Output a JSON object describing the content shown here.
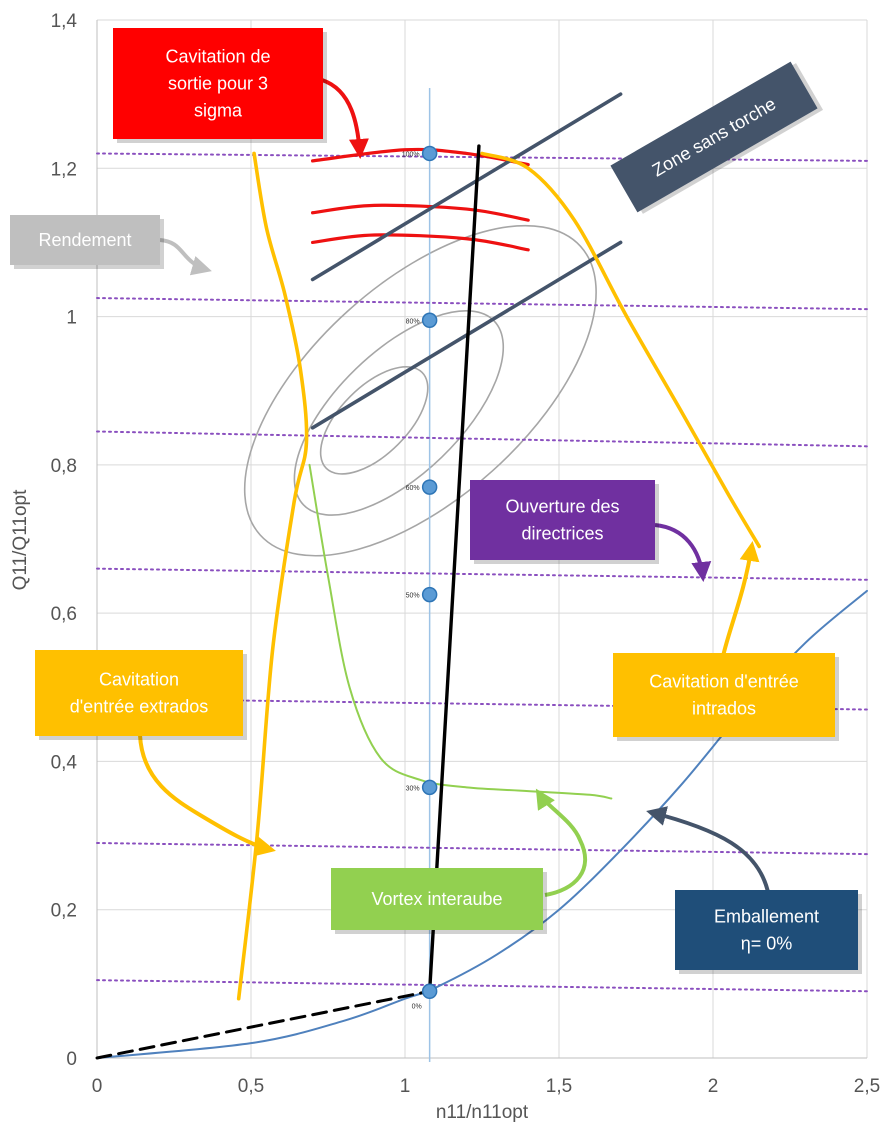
{
  "chart_data": {
    "type": "scatter",
    "xlabel": "n11/n11opt",
    "ylabel": "Q11/Q11opt",
    "xlim": [
      0,
      2.5
    ],
    "ylim": [
      0,
      1.4
    ],
    "grid": true,
    "x_ticks": [
      {
        "v": 0,
        "label": "0"
      },
      {
        "v": 0.5,
        "label": "0,5"
      },
      {
        "v": 1,
        "label": "1"
      },
      {
        "v": 1.5,
        "label": "1,5"
      },
      {
        "v": 2,
        "label": "2"
      },
      {
        "v": 2.5,
        "label": "2,5"
      }
    ],
    "y_ticks": [
      {
        "v": 0,
        "label": "0"
      },
      {
        "v": 0.2,
        "label": "0,2"
      },
      {
        "v": 0.4,
        "label": "0,4"
      },
      {
        "v": 0.6,
        "label": "0,6"
      },
      {
        "v": 0.8,
        "label": "0,8"
      },
      {
        "v": 1,
        "label": "1"
      },
      {
        "v": 1.2,
        "label": "1,2"
      },
      {
        "v": 1.4,
        "label": "1,4"
      }
    ],
    "vertical_reference_x": 1.08,
    "points": [
      {
        "x": 1.08,
        "y": 1.22,
        "label": "100%"
      },
      {
        "x": 1.08,
        "y": 0.995,
        "label": "80%"
      },
      {
        "x": 1.08,
        "y": 0.77,
        "label": "60%"
      },
      {
        "x": 1.08,
        "y": 0.625,
        "label": "50%"
      },
      {
        "x": 1.08,
        "y": 0.365,
        "label": "30%"
      },
      {
        "x": 1.08,
        "y": 0.09,
        "label": "0%"
      }
    ],
    "efficiency_ellipses": [
      {
        "cx": 1.05,
        "cy": 0.9,
        "rx": 0.7,
        "ry": 0.35,
        "rot": -42
      },
      {
        "cx": 0.98,
        "cy": 0.87,
        "rx": 0.43,
        "ry": 0.2,
        "rot": -44
      },
      {
        "cx": 0.9,
        "cy": 0.86,
        "rx": 0.22,
        "ry": 0.11,
        "rot": -45
      }
    ],
    "series": [
      {
        "id": "guide-vane-lines",
        "color": "#8a4fbf",
        "style": "dotted",
        "lines": [
          [
            [
              0,
              1.22
            ],
            [
              2.5,
              1.21
            ]
          ],
          [
            [
              0,
              1.025
            ],
            [
              2.5,
              1.01
            ]
          ],
          [
            [
              0,
              0.845
            ],
            [
              2.5,
              0.825
            ]
          ],
          [
            [
              0,
              0.66
            ],
            [
              2.5,
              0.645
            ]
          ],
          [
            [
              0,
              0.485
            ],
            [
              2.5,
              0.47
            ]
          ],
          [
            [
              0,
              0.29
            ],
            [
              2.5,
              0.275
            ]
          ],
          [
            [
              0,
              0.105
            ],
            [
              2.5,
              0.09
            ]
          ]
        ]
      },
      {
        "id": "cavitation-outlet",
        "color": "#ee1111",
        "lines": [
          [
            [
              0.7,
              1.21
            ],
            [
              1.0,
              1.225
            ],
            [
              1.2,
              1.22
            ],
            [
              1.4,
              1.205
            ]
          ],
          [
            [
              0.7,
              1.14
            ],
            [
              0.9,
              1.15
            ],
            [
              1.2,
              1.145
            ],
            [
              1.4,
              1.13
            ]
          ],
          [
            [
              0.7,
              1.1
            ],
            [
              0.9,
              1.11
            ],
            [
              1.2,
              1.105
            ],
            [
              1.4,
              1.09
            ]
          ]
        ]
      },
      {
        "id": "torch-free-zone",
        "color": "#44546a",
        "lines": [
          [
            [
              0.7,
              1.05
            ],
            [
              1.7,
              1.3
            ]
          ],
          [
            [
              0.7,
              0.85
            ],
            [
              1.7,
              1.1
            ]
          ]
        ]
      },
      {
        "id": "cavitation-extrados",
        "color": "#ffc000",
        "points": [
          [
            0.46,
            0.08
          ],
          [
            0.52,
            0.3
          ],
          [
            0.57,
            0.55
          ],
          [
            0.64,
            0.75
          ],
          [
            0.68,
            0.83
          ],
          [
            0.66,
            0.93
          ],
          [
            0.61,
            1.03
          ],
          [
            0.55,
            1.12
          ],
          [
            0.51,
            1.22
          ]
        ]
      },
      {
        "id": "cavitation-intrados",
        "color": "#ffc000",
        "points": [
          [
            1.25,
            1.22
          ],
          [
            1.4,
            1.2
          ],
          [
            1.55,
            1.13
          ],
          [
            1.72,
            1.0
          ],
          [
            1.9,
            0.87
          ],
          [
            2.05,
            0.76
          ],
          [
            2.15,
            0.69
          ]
        ]
      },
      {
        "id": "inter-blade-vortex",
        "color": "#92d050",
        "points": [
          [
            0.69,
            0.8
          ],
          [
            0.75,
            0.65
          ],
          [
            0.82,
            0.5
          ],
          [
            0.92,
            0.405
          ],
          [
            1.05,
            0.375
          ],
          [
            1.2,
            0.365
          ],
          [
            1.4,
            0.36
          ],
          [
            1.6,
            0.355
          ],
          [
            1.67,
            0.35
          ]
        ]
      },
      {
        "id": "runaway",
        "color": "#4f81bd",
        "points": [
          [
            0,
            0
          ],
          [
            0.5,
            0.02
          ],
          [
            0.8,
            0.05
          ],
          [
            1.0,
            0.08
          ],
          [
            1.1,
            0.095
          ],
          [
            1.3,
            0.14
          ],
          [
            1.5,
            0.2
          ],
          [
            1.7,
            0.28
          ],
          [
            1.9,
            0.37
          ],
          [
            2.1,
            0.47
          ],
          [
            2.3,
            0.56
          ],
          [
            2.5,
            0.63
          ]
        ]
      },
      {
        "id": "opening-axis",
        "color": "#000000",
        "points": [
          [
            1.08,
            0.09
          ],
          [
            1.24,
            1.23
          ]
        ]
      },
      {
        "id": "low-flow-dashed",
        "color": "#000000",
        "style": "dashed",
        "points": [
          [
            0,
            0
          ],
          [
            1.08,
            0.09
          ]
        ]
      }
    ],
    "annotations": [
      {
        "id": "cavitation-sortie",
        "lines": [
          "Cavitation de",
          "sortie pour 3",
          "sigma"
        ],
        "fill": "#ff0000",
        "text_color": "#ffffff"
      },
      {
        "id": "zone-sans-torche",
        "lines": [
          "Zone sans torche"
        ],
        "fill": "#44546a",
        "text_color": "#ffffff",
        "rotation": -30
      },
      {
        "id": "rendement",
        "lines": [
          "Rendement"
        ],
        "fill": "#bfbfbf",
        "text_color": "#ffffff"
      },
      {
        "id": "ouverture-directrices",
        "lines": [
          "Ouverture des",
          "directrices"
        ],
        "fill": "#7030a0",
        "text_color": "#ffffff"
      },
      {
        "id": "cavitation-extrados",
        "lines": [
          "Cavitation",
          "d'entrée extrados"
        ],
        "fill": "#ffc000",
        "text_color": "#ffffff"
      },
      {
        "id": "cavitation-intrados",
        "lines": [
          "Cavitation d'entrée",
          "intrados"
        ],
        "fill": "#ffc000",
        "text_color": "#ffffff"
      },
      {
        "id": "vortex-interaube",
        "lines": [
          "Vortex interaube"
        ],
        "fill": "#92d050",
        "text_color": "#ffffff"
      },
      {
        "id": "emballement",
        "lines": [
          "Emballement",
          "η= 0%"
        ],
        "fill": "#1f4e79",
        "text_color": "#ffffff"
      }
    ]
  }
}
